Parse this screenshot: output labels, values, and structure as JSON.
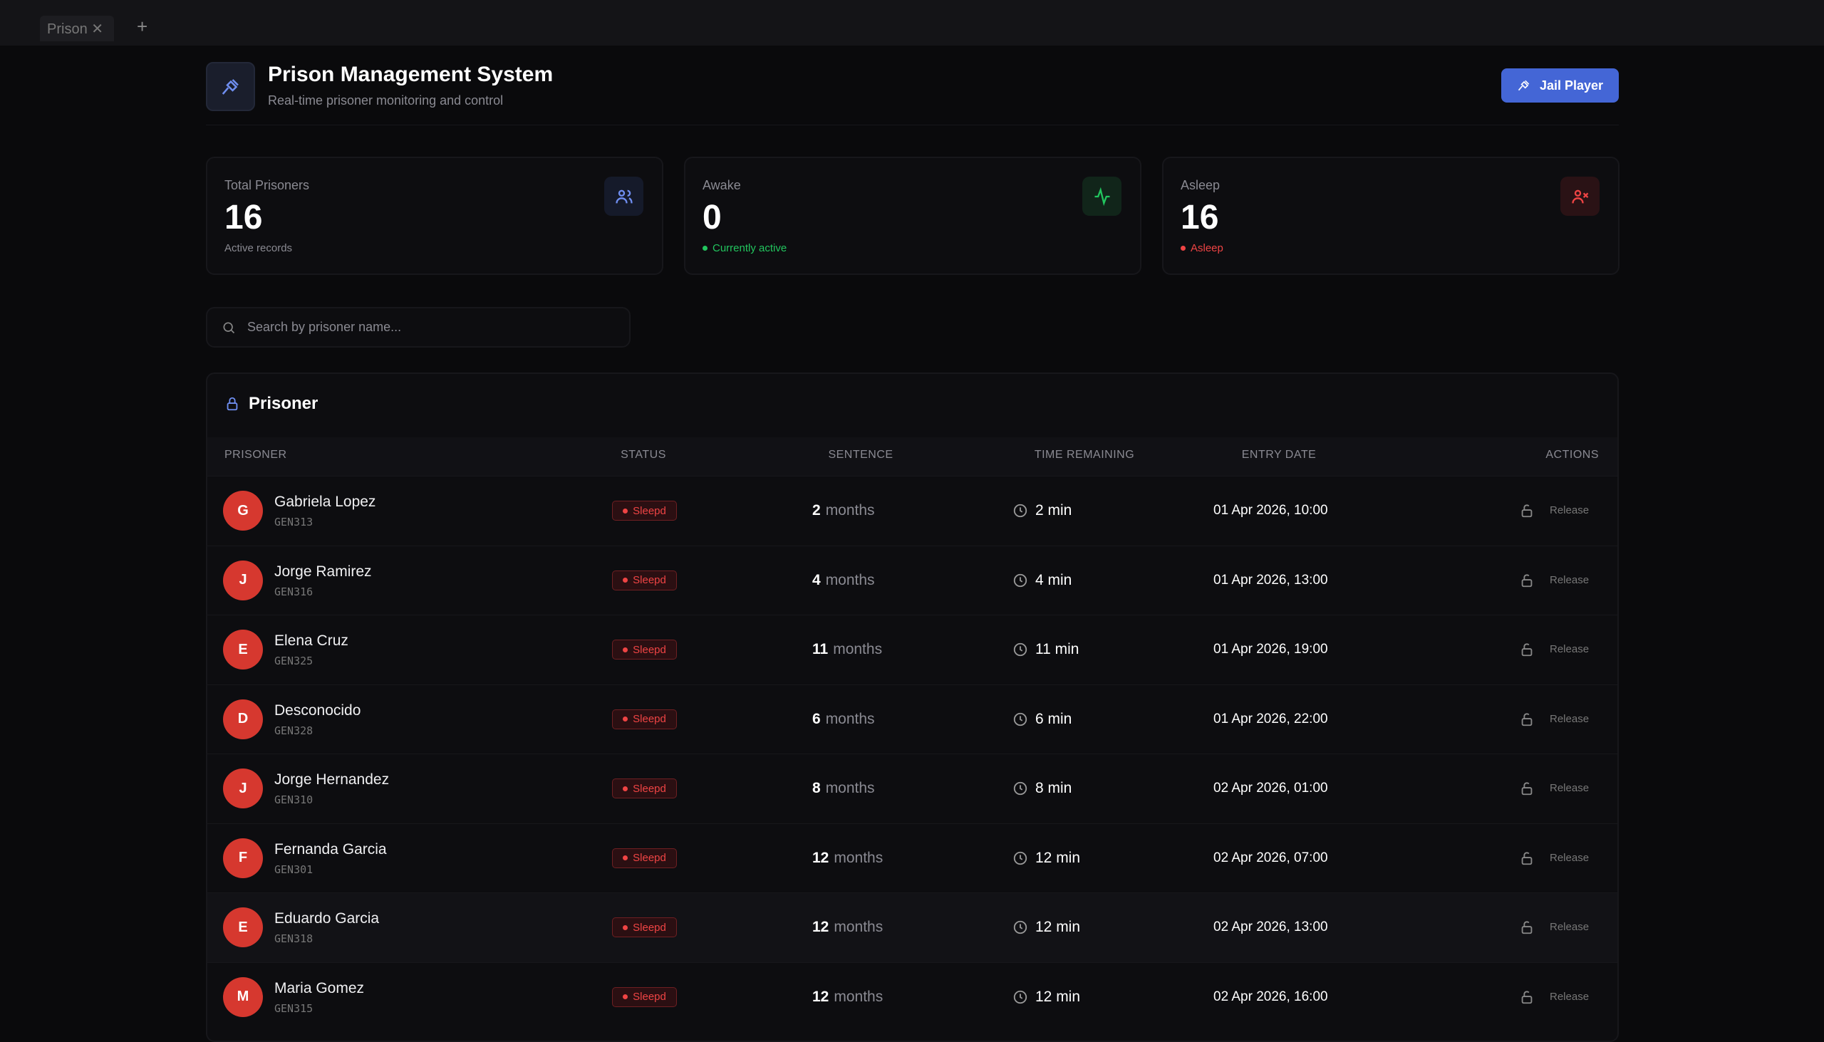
{
  "tab": {
    "label": "Prison"
  },
  "header": {
    "title": "Prison Management System",
    "subtitle": "Real-time prisoner monitoring and control",
    "button": "Jail Player"
  },
  "stats": [
    {
      "label": "Total Prisoners",
      "value": "16",
      "note": "Active records"
    },
    {
      "label": "Awake",
      "value": "0",
      "note": "Currently active"
    },
    {
      "label": "Asleep",
      "value": "16",
      "note": "Asleep"
    }
  ],
  "search": {
    "placeholder": "Search by prisoner name..."
  },
  "table": {
    "title": "Prisoner",
    "columns": [
      "PRISONER",
      "STATUS",
      "SENTENCE",
      "TIME REMAINING",
      "ENTRY DATE",
      "ACTIONS"
    ],
    "rows": [
      {
        "initial": "G",
        "name": "Gabriela Lopez",
        "id": "GEN313",
        "status": "Sleepd",
        "sentence": "2",
        "unit": "months",
        "time": "2 min",
        "entry": "01 Apr 2026, 10:00",
        "action": "Release"
      },
      {
        "initial": "J",
        "name": "Jorge Ramirez",
        "id": "GEN316",
        "status": "Sleepd",
        "sentence": "4",
        "unit": "months",
        "time": "4 min",
        "entry": "01 Apr 2026, 13:00",
        "action": "Release"
      },
      {
        "initial": "E",
        "name": "Elena Cruz",
        "id": "GEN325",
        "status": "Sleepd",
        "sentence": "11",
        "unit": "months",
        "time": "11 min",
        "entry": "01 Apr 2026, 19:00",
        "action": "Release"
      },
      {
        "initial": "D",
        "name": "Desconocido",
        "id": "GEN328",
        "status": "Sleepd",
        "sentence": "6",
        "unit": "months",
        "time": "6 min",
        "entry": "01 Apr 2026, 22:00",
        "action": "Release"
      },
      {
        "initial": "J",
        "name": "Jorge Hernandez",
        "id": "GEN310",
        "status": "Sleepd",
        "sentence": "8",
        "unit": "months",
        "time": "8 min",
        "entry": "02 Apr 2026, 01:00",
        "action": "Release"
      },
      {
        "initial": "F",
        "name": "Fernanda Garcia",
        "id": "GEN301",
        "status": "Sleepd",
        "sentence": "12",
        "unit": "months",
        "time": "12 min",
        "entry": "02 Apr 2026, 07:00",
        "action": "Release"
      },
      {
        "initial": "E",
        "name": "Eduardo Garcia",
        "id": "GEN318",
        "status": "Sleepd",
        "sentence": "12",
        "unit": "months",
        "time": "12 min",
        "entry": "02 Apr 2026, 13:00",
        "action": "Release"
      },
      {
        "initial": "M",
        "name": "Maria Gomez",
        "id": "GEN315",
        "status": "Sleepd",
        "sentence": "12",
        "unit": "months",
        "time": "12 min",
        "entry": "02 Apr 2026, 16:00",
        "action": "Release"
      }
    ]
  }
}
